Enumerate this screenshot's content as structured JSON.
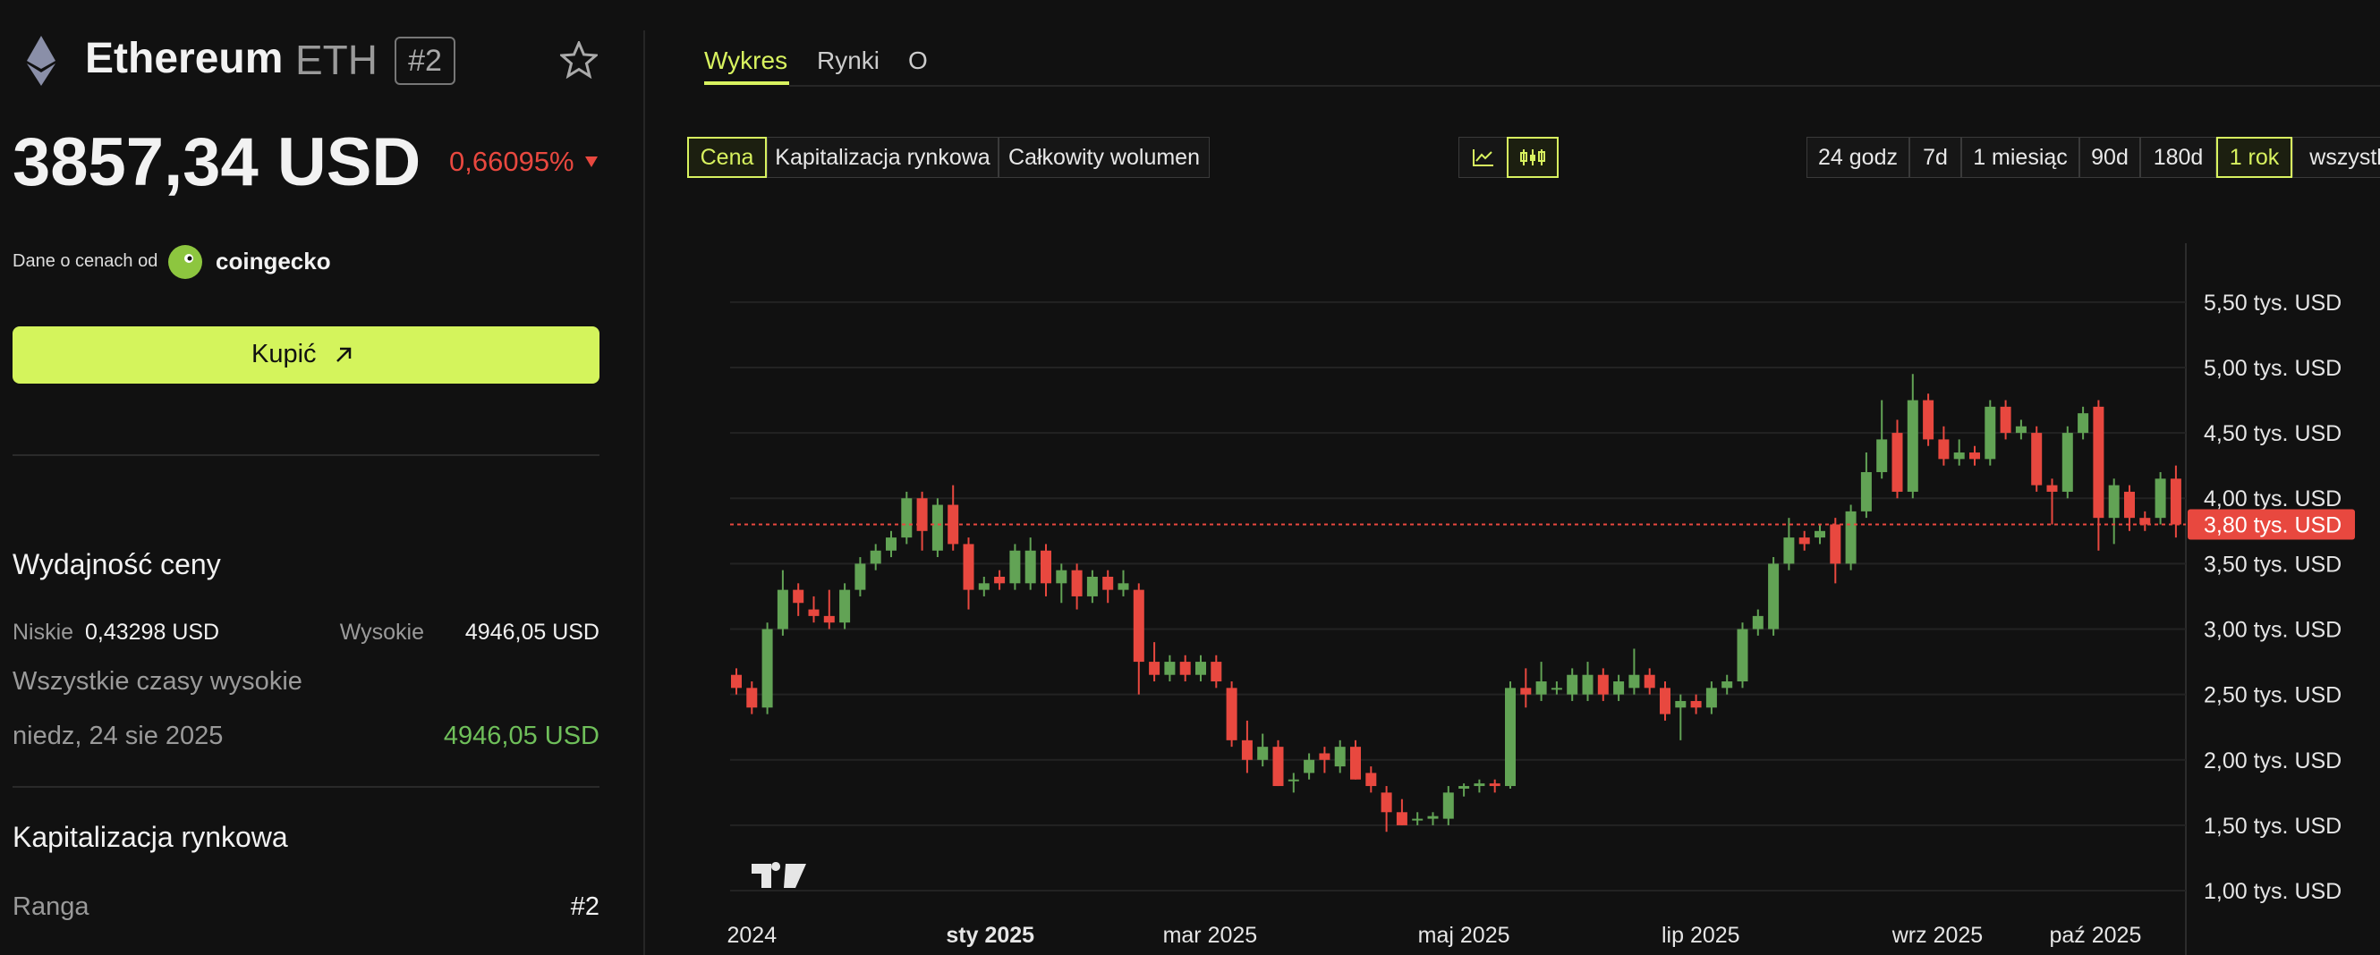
{
  "header": {
    "name": "Ethereum",
    "symbol": "ETH",
    "rank": "#2",
    "price": "3857,34 USD",
    "change": "0,66095%"
  },
  "source": {
    "label": "Dane o cenach od",
    "provider": "coingecko"
  },
  "buy_button": "Kupić",
  "performance": {
    "title": "Wydajność ceny",
    "low_label": "Niskie",
    "low": "0,43298 USD",
    "high_label": "Wysokie",
    "high": "4946,05 USD",
    "ath_label": "Wszystkie czasy wysokie",
    "ath_date": "niedz, 24 sie 2025",
    "ath_value": "4946,05 USD"
  },
  "market_cap": {
    "title": "Kapitalizacja rynkowa",
    "rank_label": "Ranga",
    "rank": "#2"
  },
  "tabs": [
    "Wykres",
    "Rynki",
    "O"
  ],
  "metrics": [
    "Cena",
    "Kapitalizacja rynkowa",
    "Całkowity wolumen"
  ],
  "ranges": [
    "24 godz",
    "7d",
    "1 miesiąc",
    "90d",
    "180d",
    "1 rok",
    "wszystko"
  ],
  "chart": {
    "type": "candlestick",
    "up_color": "#62a355",
    "down_color": "#e8483f",
    "grid": true,
    "ylim": [
      0.85,
      5.95
    ],
    "yticks": [
      {
        "value": 1.0,
        "label": "1,00 tys. USD"
      },
      {
        "value": 1.5,
        "label": "1,50 tys. USD"
      },
      {
        "value": 2.0,
        "label": "2,00 tys. USD"
      },
      {
        "value": 2.5,
        "label": "2,50 tys. USD"
      },
      {
        "value": 3.0,
        "label": "3,00 tys. USD"
      },
      {
        "value": 3.5,
        "label": "3,50 tys. USD"
      },
      {
        "value": 4.0,
        "label": "4,00 tys. USD"
      },
      {
        "value": 4.5,
        "label": "4,50 tys. USD"
      },
      {
        "value": 5.0,
        "label": "5,00 tys. USD"
      },
      {
        "value": 5.5,
        "label": "5,50 tys. USD"
      }
    ],
    "xticks": [
      {
        "value": 1,
        "label": "2024"
      },
      {
        "value": 16.4,
        "label": "sty 2025"
      },
      {
        "value": 30.6,
        "label": "mar 2025"
      },
      {
        "value": 47,
        "label": "maj 2025"
      },
      {
        "value": 62.3,
        "label": "lip 2025"
      },
      {
        "value": 77.6,
        "label": "wrz 2025"
      },
      {
        "value": 87.8,
        "label": "paź 2025"
      }
    ],
    "current": {
      "value": 3.8,
      "label": "3,80 tys. USD"
    },
    "candles": [
      [
        2.65,
        2.7,
        2.5,
        2.55
      ],
      [
        2.55,
        2.6,
        2.35,
        2.4
      ],
      [
        2.4,
        3.05,
        2.35,
        3.0
      ],
      [
        3.0,
        3.45,
        2.95,
        3.3
      ],
      [
        3.3,
        3.35,
        3.1,
        3.2
      ],
      [
        3.15,
        3.25,
        3.05,
        3.1
      ],
      [
        3.1,
        3.3,
        3.0,
        3.05
      ],
      [
        3.05,
        3.35,
        3.0,
        3.3
      ],
      [
        3.3,
        3.55,
        3.25,
        3.5
      ],
      [
        3.5,
        3.65,
        3.45,
        3.6
      ],
      [
        3.6,
        3.75,
        3.55,
        3.7
      ],
      [
        3.7,
        4.05,
        3.65,
        4.0
      ],
      [
        4.0,
        4.05,
        3.6,
        3.75
      ],
      [
        3.6,
        4.0,
        3.55,
        3.95
      ],
      [
        3.95,
        4.1,
        3.6,
        3.65
      ],
      [
        3.65,
        3.7,
        3.15,
        3.3
      ],
      [
        3.3,
        3.4,
        3.25,
        3.35
      ],
      [
        3.4,
        3.45,
        3.3,
        3.35
      ],
      [
        3.35,
        3.65,
        3.3,
        3.6
      ],
      [
        3.35,
        3.7,
        3.3,
        3.6
      ],
      [
        3.6,
        3.65,
        3.25,
        3.35
      ],
      [
        3.35,
        3.5,
        3.2,
        3.45
      ],
      [
        3.45,
        3.5,
        3.15,
        3.25
      ],
      [
        3.25,
        3.45,
        3.2,
        3.4
      ],
      [
        3.4,
        3.45,
        3.2,
        3.3
      ],
      [
        3.3,
        3.45,
        3.25,
        3.35
      ],
      [
        3.3,
        3.35,
        2.5,
        2.75
      ],
      [
        2.75,
        2.9,
        2.6,
        2.65
      ],
      [
        2.65,
        2.8,
        2.6,
        2.75
      ],
      [
        2.75,
        2.8,
        2.6,
        2.65
      ],
      [
        2.65,
        2.8,
        2.6,
        2.75
      ],
      [
        2.75,
        2.8,
        2.55,
        2.6
      ],
      [
        2.55,
        2.6,
        2.1,
        2.15
      ],
      [
        2.15,
        2.3,
        1.9,
        2.0
      ],
      [
        2.0,
        2.2,
        1.95,
        2.1
      ],
      [
        2.1,
        2.15,
        1.8,
        1.8
      ],
      [
        1.85,
        1.9,
        1.75,
        1.85
      ],
      [
        1.9,
        2.05,
        1.85,
        2.0
      ],
      [
        2.05,
        2.1,
        1.9,
        2.0
      ],
      [
        1.95,
        2.15,
        1.9,
        2.1
      ],
      [
        2.1,
        2.15,
        1.85,
        1.85
      ],
      [
        1.9,
        1.95,
        1.75,
        1.8
      ],
      [
        1.75,
        1.8,
        1.45,
        1.6
      ],
      [
        1.6,
        1.7,
        1.5,
        1.5
      ],
      [
        1.55,
        1.6,
        1.5,
        1.55
      ],
      [
        1.55,
        1.6,
        1.5,
        1.57
      ],
      [
        1.55,
        1.8,
        1.5,
        1.75
      ],
      [
        1.78,
        1.82,
        1.72,
        1.8
      ],
      [
        1.8,
        1.85,
        1.75,
        1.82
      ],
      [
        1.82,
        1.85,
        1.75,
        1.8
      ],
      [
        1.8,
        2.6,
        1.78,
        2.55
      ],
      [
        2.55,
        2.7,
        2.4,
        2.5
      ],
      [
        2.5,
        2.75,
        2.45,
        2.6
      ],
      [
        2.55,
        2.6,
        2.5,
        2.55
      ],
      [
        2.5,
        2.7,
        2.45,
        2.65
      ],
      [
        2.5,
        2.75,
        2.45,
        2.65
      ],
      [
        2.65,
        2.7,
        2.45,
        2.5
      ],
      [
        2.5,
        2.65,
        2.45,
        2.6
      ],
      [
        2.55,
        2.85,
        2.5,
        2.65
      ],
      [
        2.65,
        2.7,
        2.5,
        2.55
      ],
      [
        2.55,
        2.6,
        2.3,
        2.35
      ],
      [
        2.4,
        2.5,
        2.15,
        2.45
      ],
      [
        2.45,
        2.5,
        2.35,
        2.4
      ],
      [
        2.4,
        2.6,
        2.35,
        2.55
      ],
      [
        2.55,
        2.65,
        2.5,
        2.6
      ],
      [
        2.6,
        3.05,
        2.55,
        3.0
      ],
      [
        3.0,
        3.15,
        2.95,
        3.1
      ],
      [
        3.0,
        3.55,
        2.95,
        3.5
      ],
      [
        3.5,
        3.85,
        3.45,
        3.7
      ],
      [
        3.7,
        3.75,
        3.6,
        3.65
      ],
      [
        3.7,
        3.8,
        3.65,
        3.75
      ],
      [
        3.8,
        3.85,
        3.35,
        3.5
      ],
      [
        3.5,
        3.95,
        3.45,
        3.9
      ],
      [
        3.9,
        4.35,
        3.85,
        4.2
      ],
      [
        4.2,
        4.75,
        4.15,
        4.45
      ],
      [
        4.5,
        4.6,
        4.0,
        4.05
      ],
      [
        4.05,
        4.95,
        4.0,
        4.75
      ],
      [
        4.75,
        4.8,
        4.4,
        4.45
      ],
      [
        4.45,
        4.55,
        4.25,
        4.3
      ],
      [
        4.3,
        4.45,
        4.25,
        4.35
      ],
      [
        4.35,
        4.4,
        4.25,
        4.3
      ],
      [
        4.3,
        4.75,
        4.25,
        4.7
      ],
      [
        4.7,
        4.75,
        4.45,
        4.5
      ],
      [
        4.5,
        4.6,
        4.45,
        4.55
      ],
      [
        4.5,
        4.55,
        4.05,
        4.1
      ],
      [
        4.1,
        4.15,
        3.8,
        4.05
      ],
      [
        4.05,
        4.55,
        4.0,
        4.5
      ],
      [
        4.5,
        4.7,
        4.45,
        4.65
      ],
      [
        4.7,
        4.75,
        3.6,
        3.85
      ],
      [
        3.85,
        4.15,
        3.65,
        4.1
      ],
      [
        4.05,
        4.1,
        3.75,
        3.85
      ],
      [
        3.85,
        3.9,
        3.75,
        3.8
      ],
      [
        3.85,
        4.2,
        3.8,
        4.15
      ],
      [
        4.15,
        4.25,
        3.7,
        3.8
      ]
    ]
  }
}
